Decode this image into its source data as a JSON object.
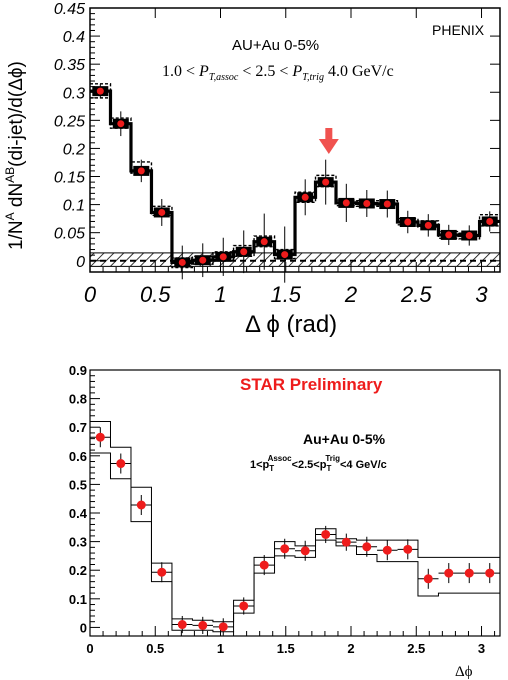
{
  "chart_data": [
    {
      "type": "scatter",
      "corner_label": "PHENIX",
      "title_line1": "AU+Au 0-5%",
      "title_line2_parts": [
        "1.0 < ",
        "P",
        "T,assoc",
        " < 2.5 < ",
        "P",
        "T,trig",
        " 4.0 GeV/c"
      ],
      "ylabel_parts": [
        "1/N",
        "A",
        " dN",
        "AB",
        "(di-jet)/d(Δϕ)"
      ],
      "xlabel": "Δ ϕ (rad)",
      "xlim": [
        0,
        3.1416
      ],
      "ylim": [
        -0.02,
        0.45
      ],
      "x_ticks": [
        "0",
        "0.5",
        "1",
        "1.5",
        "2",
        "2.5",
        "3"
      ],
      "x_tick_values": [
        0,
        0.5,
        1,
        1.5,
        2,
        2.5,
        3
      ],
      "y_ticks": [
        "0",
        "0.05",
        "0.1",
        "0.15",
        "0.2",
        "0.25",
        "0.3",
        "0.35",
        "0.4",
        "0.45"
      ],
      "y_tick_values": [
        0,
        0.05,
        0.1,
        0.15,
        0.2,
        0.25,
        0.3,
        0.35,
        0.4,
        0.45
      ],
      "arrow_at_x": 1.83,
      "bin_edges": [
        0,
        0.157,
        0.314,
        0.471,
        0.628,
        0.785,
        0.942,
        1.1,
        1.257,
        1.414,
        1.571,
        1.728,
        1.885,
        2.042,
        2.199,
        2.356,
        2.513,
        2.67,
        2.827,
        2.985,
        3.1416
      ],
      "x": [
        0.079,
        0.236,
        0.393,
        0.55,
        0.707,
        0.864,
        1.021,
        1.178,
        1.335,
        1.492,
        1.649,
        1.806,
        1.964,
        2.121,
        2.278,
        2.435,
        2.592,
        2.749,
        2.906,
        3.063
      ],
      "y": [
        0.302,
        0.244,
        0.16,
        0.086,
        -0.003,
        0.001,
        0.007,
        0.016,
        0.034,
        0.011,
        0.113,
        0.14,
        0.103,
        0.102,
        0.101,
        0.069,
        0.063,
        0.046,
        0.045,
        0.07
      ],
      "stat_err": [
        0.013,
        0.022,
        0.02,
        0.024,
        0.03,
        0.03,
        0.034,
        0.038,
        0.05,
        0.05,
        0.032,
        0.04,
        0.034,
        0.024,
        0.024,
        0.02,
        0.02,
        0.018,
        0.018,
        0.018
      ],
      "sys_upper": [
        0.315,
        0.254,
        0.176,
        0.097,
        0.005,
        0.008,
        0.016,
        0.027,
        0.044,
        0.02,
        0.122,
        0.152,
        0.108,
        0.107,
        0.107,
        0.075,
        0.071,
        0.052,
        0.049,
        0.082
      ],
      "sys_lower": [
        0.29,
        0.236,
        0.156,
        0.081,
        -0.012,
        -0.006,
        0.002,
        0.008,
        0.025,
        0.004,
        0.104,
        0.132,
        0.098,
        0.097,
        0.097,
        0.064,
        0.06,
        0.04,
        0.039,
        0.062
      ],
      "norm_band": [
        -0.01,
        0.014
      ]
    },
    {
      "type": "scatter",
      "title": "STAR Preliminary",
      "title_color": "#ee1c1c",
      "subtitle": "Au+Au 0-5%",
      "cut_parts": [
        "1<p",
        "T",
        "Assoc",
        "<2.5<p",
        "T",
        "Trig",
        "<4 GeV/c"
      ],
      "xlabel": "Δϕ",
      "xlim": [
        0,
        3.1416
      ],
      "ylim": [
        -0.03,
        0.9
      ],
      "x_ticks": [
        "0",
        "0.5",
        "1",
        "1.5",
        "2",
        "2.5",
        "3"
      ],
      "x_tick_values": [
        0,
        0.5,
        1,
        1.5,
        2,
        2.5,
        3
      ],
      "y_ticks": [
        "0",
        "0.1",
        "0.2",
        "0.3",
        "0.4",
        "0.5",
        "0.6",
        "0.7",
        "0.8",
        "0.9"
      ],
      "y_tick_values": [
        0,
        0.1,
        0.2,
        0.3,
        0.4,
        0.5,
        0.6,
        0.7,
        0.8,
        0.9
      ],
      "bin_edges": [
        0,
        0.157,
        0.314,
        0.471,
        0.628,
        0.785,
        0.942,
        1.1,
        1.257,
        1.414,
        1.571,
        1.728,
        1.885,
        2.042,
        2.199,
        2.356,
        2.513,
        2.67,
        2.827,
        2.985,
        3.1416
      ],
      "x": [
        0.079,
        0.236,
        0.393,
        0.55,
        0.707,
        0.864,
        1.021,
        1.178,
        1.335,
        1.492,
        1.649,
        1.806,
        1.964,
        2.121,
        2.278,
        2.435,
        2.592,
        2.749,
        2.906,
        3.063
      ],
      "y": [
        0.665,
        0.573,
        0.428,
        0.193,
        0.01,
        0.007,
        0.002,
        0.075,
        0.218,
        0.275,
        0.268,
        0.325,
        0.298,
        0.282,
        0.27,
        0.273,
        0.17,
        0.19,
        0.19,
        0.19
      ],
      "x_shift": [
        0.0,
        0.0,
        0.0,
        0.0,
        0.0,
        0.0,
        0.0,
        0.0,
        0.0,
        0.0,
        0.0,
        0.0,
        0.0,
        0.0,
        0.0,
        0.0,
        0.0,
        0.0,
        0.0,
        0.0
      ],
      "stat_err": [
        0.035,
        0.035,
        0.035,
        0.035,
        0.03,
        0.03,
        0.03,
        0.03,
        0.035,
        0.035,
        0.035,
        0.03,
        0.03,
        0.035,
        0.035,
        0.035,
        0.035,
        0.035,
        0.035,
        0.035
      ],
      "sys_upper": [
        0.72,
        0.63,
        0.49,
        0.225,
        0.03,
        0.025,
        0.02,
        0.095,
        0.245,
        0.3,
        0.285,
        0.345,
        0.31,
        0.305,
        0.305,
        0.305,
        0.245,
        0.245,
        0.245,
        0.245
      ],
      "sys_lower": [
        0.61,
        0.52,
        0.37,
        0.16,
        -0.01,
        -0.01,
        -0.015,
        0.05,
        0.19,
        0.25,
        0.245,
        0.305,
        0.285,
        0.255,
        0.23,
        0.23,
        0.11,
        0.12,
        0.12,
        0.12
      ],
      "marker_color": "#ee1c1c"
    }
  ]
}
